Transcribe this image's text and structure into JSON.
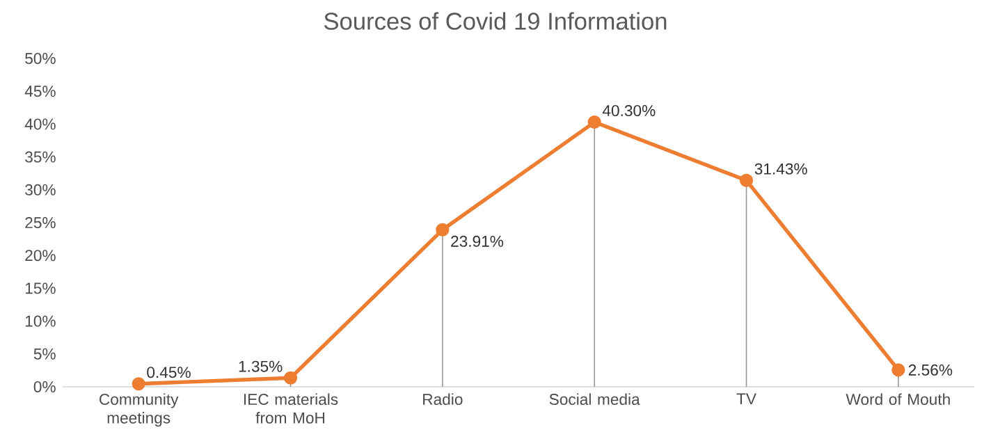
{
  "chart_data": {
    "type": "line",
    "title": "Sources of Covid 19 Information",
    "categories": [
      "Community meetings",
      "IEC materials from MoH",
      "Radio",
      "Social media",
      "TV",
      "Word of Mouth"
    ],
    "series": [
      {
        "color": "#ed7d31",
        "values": [
          0.45,
          1.35,
          23.91,
          40.3,
          31.43,
          2.56
        ],
        "value_labels": [
          "0.45%",
          "1.35%",
          "23.91%",
          "40.30%",
          "31.43%",
          "2.56%"
        ]
      }
    ],
    "ylim": [
      0,
      50
    ],
    "yticks": [
      {
        "value": 0,
        "label": "0%"
      },
      {
        "value": 5,
        "label": "5%"
      },
      {
        "value": 10,
        "label": "10%"
      },
      {
        "value": 15,
        "label": "15%"
      },
      {
        "value": 20,
        "label": "20%"
      },
      {
        "value": 25,
        "label": "25%"
      },
      {
        "value": 30,
        "label": "30%"
      },
      {
        "value": 35,
        "label": "35%"
      },
      {
        "value": 40,
        "label": "40%"
      },
      {
        "value": 45,
        "label": "45%"
      },
      {
        "value": 50,
        "label": "50%"
      }
    ],
    "marker": "circle",
    "line_style": "solid"
  }
}
